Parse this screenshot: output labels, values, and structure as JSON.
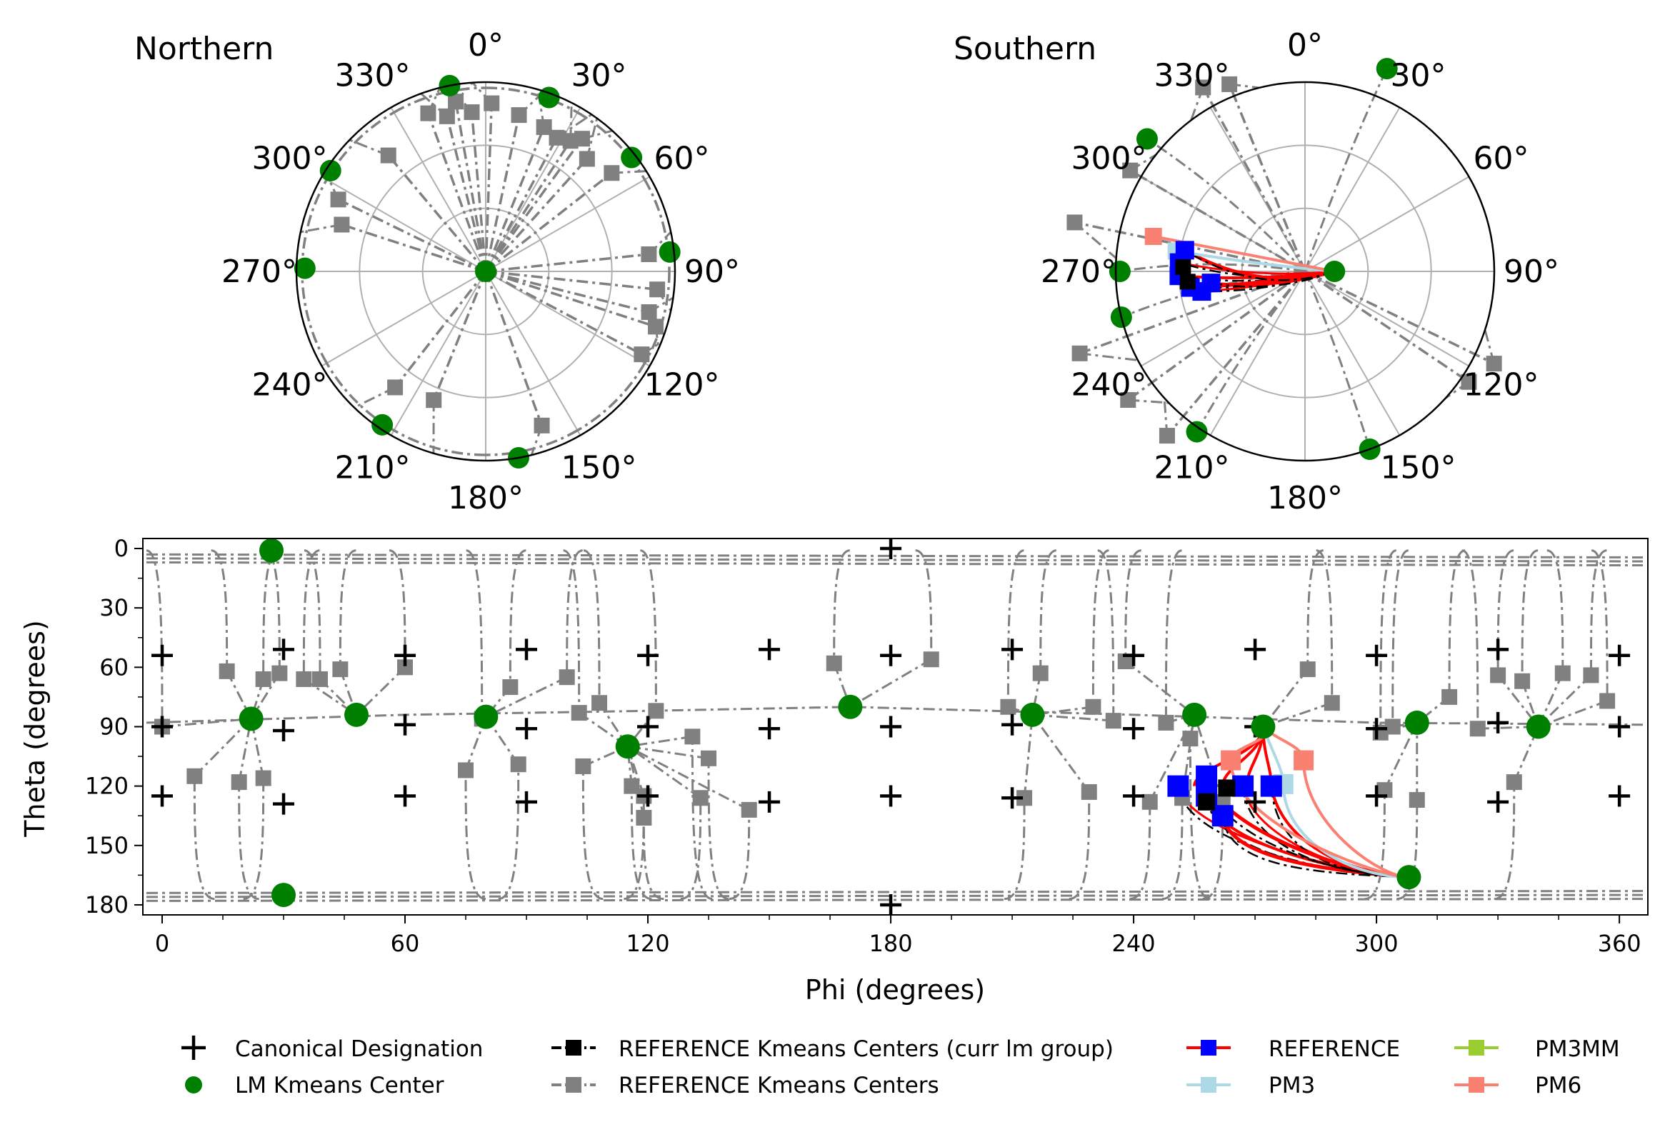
{
  "figure": {
    "background": "#ffffff"
  },
  "polar_northern": {
    "title": "Northern"
  },
  "polar_southern": {
    "title": "Southern"
  },
  "colors": {
    "gray": "#808080",
    "green": "#008000",
    "black": "#000000",
    "red": "#ff0000",
    "blue": "#0000ff",
    "lightblue": "#add8e6",
    "salmon": "#fa8072",
    "yellowgreen": "#9acd32",
    "grid": "#b0b0b0"
  },
  "chart_data": [
    {
      "type": "polar",
      "title": "Northern",
      "angle_ticks": [
        "0°",
        "30°",
        "60°",
        "90°",
        "120°",
        "150°",
        "180°",
        "210°",
        "240°",
        "270°",
        "300°",
        "330°"
      ],
      "radial_max_theta_deg": 90,
      "gray_center_points": [
        {
          "phi": 2,
          "theta": 80
        },
        {
          "phi": 12,
          "theta": 76
        },
        {
          "phi": 22,
          "theta": 74
        },
        {
          "phi": 28,
          "theta": 72
        },
        {
          "phi": 33,
          "theta": 74
        },
        {
          "phi": 36,
          "theta": 78
        },
        {
          "phi": 42,
          "theta": 72
        },
        {
          "phi": 52,
          "theta": 76
        },
        {
          "phi": 84,
          "theta": 78
        },
        {
          "phi": 96,
          "theta": 82
        },
        {
          "phi": 104,
          "theta": 80
        },
        {
          "phi": 108,
          "theta": 85
        },
        {
          "phi": 118,
          "theta": 84
        },
        {
          "phi": 160,
          "theta": 78
        },
        {
          "phi": 202,
          "theta": 66
        },
        {
          "phi": 218,
          "theta": 70
        },
        {
          "phi": 288,
          "theta": 72
        },
        {
          "phi": 296,
          "theta": 78
        },
        {
          "phi": 320,
          "theta": 72
        },
        {
          "phi": 340,
          "theta": 80
        },
        {
          "phi": 346,
          "theta": 76
        },
        {
          "phi": 350,
          "theta": 82
        },
        {
          "phi": 355,
          "theta": 76
        }
      ],
      "lm_centers": [
        {
          "phi": 0,
          "theta": 0
        },
        {
          "phi": 349,
          "theta": 90
        },
        {
          "phi": 20,
          "theta": 88
        },
        {
          "phi": 52,
          "theta": 88
        },
        {
          "phi": 84,
          "theta": 88
        },
        {
          "phi": 170,
          "theta": 90
        },
        {
          "phi": 214,
          "theta": 88
        },
        {
          "phi": 271,
          "theta": 86
        },
        {
          "phi": 303,
          "theta": 88
        }
      ]
    },
    {
      "type": "polar",
      "title": "Southern",
      "angle_ticks": [
        "0°",
        "30°",
        "60°",
        "90°",
        "120°",
        "150°",
        "180°",
        "210°",
        "240°",
        "270°",
        "300°",
        "330°"
      ],
      "radial_max_theta_deg": 90,
      "gray_center_points": [
        {
          "phi": 282,
          "theta": 68
        },
        {
          "phi": 300,
          "theta": 84
        },
        {
          "phi": 331,
          "theta": 80
        },
        {
          "phi": 338,
          "theta": 84
        },
        {
          "phi": 234,
          "theta": 76
        },
        {
          "phi": 220,
          "theta": 78
        },
        {
          "phi": 116,
          "theta": 80
        },
        {
          "phi": 124,
          "theta": 86
        },
        {
          "phi": 250,
          "theta": 66
        }
      ],
      "lm_centers": [
        {
          "phi": 22,
          "theta": 76
        },
        {
          "phi": 310,
          "theta": 82
        },
        {
          "phi": 270,
          "theta": 92
        },
        {
          "phi": 256,
          "theta": 90
        },
        {
          "phi": 214,
          "theta": 88
        },
        {
          "phi": 160,
          "theta": 90
        },
        {
          "phi": 90,
          "theta": 166
        }
      ],
      "reference_start": {
        "phi": 90,
        "theta": 166
      },
      "reference_points": [
        {
          "phi": 274,
          "theta": 120
        },
        {
          "phi": 268,
          "theta": 120
        },
        {
          "phi": 262,
          "theta": 125
        },
        {
          "phi": 259,
          "theta": 130
        },
        {
          "phi": 263,
          "theta": 135
        },
        {
          "phi": 280,
          "theta": 122
        }
      ],
      "pm3_points": [
        {
          "phi": 279,
          "theta": 118
        }
      ],
      "pm6_points": [
        {
          "phi": 283,
          "theta": 106
        }
      ]
    },
    {
      "type": "scatter",
      "xlabel": "Phi (degrees)",
      "ylabel": "Theta (degrees)",
      "xlim": [
        -3,
        363
      ],
      "ylim": [
        0,
        185
      ],
      "xticks": [
        0,
        60,
        120,
        180,
        240,
        300,
        360
      ],
      "yticks": [
        0,
        30,
        60,
        90,
        120,
        150,
        180
      ],
      "canonical_designations": [
        {
          "x": 180,
          "y": 0
        },
        {
          "x": 180,
          "y": 180
        },
        {
          "x": 0,
          "y": 54
        },
        {
          "x": 30,
          "y": 51
        },
        {
          "x": 60,
          "y": 54
        },
        {
          "x": 90,
          "y": 51
        },
        {
          "x": 120,
          "y": 54
        },
        {
          "x": 150,
          "y": 51
        },
        {
          "x": 180,
          "y": 54
        },
        {
          "x": 210,
          "y": 51
        },
        {
          "x": 240,
          "y": 54
        },
        {
          "x": 270,
          "y": 51
        },
        {
          "x": 300,
          "y": 54
        },
        {
          "x": 330,
          "y": 51
        },
        {
          "x": 360,
          "y": 54
        },
        {
          "x": 0,
          "y": 90
        },
        {
          "x": 30,
          "y": 92
        },
        {
          "x": 60,
          "y": 89
        },
        {
          "x": 90,
          "y": 91
        },
        {
          "x": 120,
          "y": 90
        },
        {
          "x": 150,
          "y": 91
        },
        {
          "x": 180,
          "y": 90
        },
        {
          "x": 210,
          "y": 89
        },
        {
          "x": 240,
          "y": 91
        },
        {
          "x": 270,
          "y": 90
        },
        {
          "x": 300,
          "y": 91
        },
        {
          "x": 330,
          "y": 88
        },
        {
          "x": 360,
          "y": 90
        },
        {
          "x": 0,
          "y": 125
        },
        {
          "x": 30,
          "y": 129
        },
        {
          "x": 60,
          "y": 125
        },
        {
          "x": 90,
          "y": 128
        },
        {
          "x": 120,
          "y": 125
        },
        {
          "x": 150,
          "y": 128
        },
        {
          "x": 180,
          "y": 125
        },
        {
          "x": 210,
          "y": 126
        },
        {
          "x": 240,
          "y": 125
        },
        {
          "x": 270,
          "y": 128
        },
        {
          "x": 300,
          "y": 125
        },
        {
          "x": 330,
          "y": 128
        },
        {
          "x": 360,
          "y": 125
        }
      ],
      "lm_kmeans_centers": [
        {
          "x": 27,
          "y": 1
        },
        {
          "x": 22,
          "y": 86
        },
        {
          "x": 48,
          "y": 84
        },
        {
          "x": 80,
          "y": 85
        },
        {
          "x": 115,
          "y": 100
        },
        {
          "x": 170,
          "y": 80
        },
        {
          "x": 215,
          "y": 84
        },
        {
          "x": 255,
          "y": 84
        },
        {
          "x": 272,
          "y": 90
        },
        {
          "x": 310,
          "y": 88
        },
        {
          "x": 340,
          "y": 90
        },
        {
          "x": 30,
          "y": 175
        },
        {
          "x": 308,
          "y": 166
        }
      ],
      "reference_kmeans_centers": [
        {
          "x": 0,
          "y": 90
        },
        {
          "x": 8,
          "y": 115
        },
        {
          "x": 16,
          "y": 62
        },
        {
          "x": 19,
          "y": 118
        },
        {
          "x": 25,
          "y": 116
        },
        {
          "x": 25,
          "y": 66
        },
        {
          "x": 29,
          "y": 63
        },
        {
          "x": 35,
          "y": 66
        },
        {
          "x": 39,
          "y": 66
        },
        {
          "x": 44,
          "y": 61
        },
        {
          "x": 60,
          "y": 60
        },
        {
          "x": 75,
          "y": 112
        },
        {
          "x": 79,
          "y": 86
        },
        {
          "x": 86,
          "y": 70
        },
        {
          "x": 88,
          "y": 109
        },
        {
          "x": 100,
          "y": 65
        },
        {
          "x": 103,
          "y": 83
        },
        {
          "x": 104,
          "y": 110
        },
        {
          "x": 108,
          "y": 78
        },
        {
          "x": 116,
          "y": 120
        },
        {
          "x": 119,
          "y": 125
        },
        {
          "x": 119,
          "y": 136
        },
        {
          "x": 122,
          "y": 82
        },
        {
          "x": 131,
          "y": 95
        },
        {
          "x": 133,
          "y": 126
        },
        {
          "x": 135,
          "y": 106
        },
        {
          "x": 145,
          "y": 132
        },
        {
          "x": 166,
          "y": 58
        },
        {
          "x": 190,
          "y": 56
        },
        {
          "x": 209,
          "y": 80
        },
        {
          "x": 213,
          "y": 126
        },
        {
          "x": 217,
          "y": 63
        },
        {
          "x": 229,
          "y": 123
        },
        {
          "x": 230,
          "y": 80
        },
        {
          "x": 235,
          "y": 87
        },
        {
          "x": 238,
          "y": 57
        },
        {
          "x": 244,
          "y": 128
        },
        {
          "x": 248,
          "y": 88
        },
        {
          "x": 252,
          "y": 126
        },
        {
          "x": 254,
          "y": 96
        },
        {
          "x": 262,
          "y": 128
        },
        {
          "x": 283,
          "y": 61
        },
        {
          "x": 289,
          "y": 78
        },
        {
          "x": 301,
          "y": 93
        },
        {
          "x": 302,
          "y": 122
        },
        {
          "x": 304,
          "y": 90
        },
        {
          "x": 310,
          "y": 127
        },
        {
          "x": 318,
          "y": 75
        },
        {
          "x": 325,
          "y": 91
        },
        {
          "x": 330,
          "y": 64
        },
        {
          "x": 334,
          "y": 118
        },
        {
          "x": 336,
          "y": 67
        },
        {
          "x": 346,
          "y": 63
        },
        {
          "x": 353,
          "y": 64
        },
        {
          "x": 357,
          "y": 77
        }
      ],
      "reference_kmeans_centers_curr_lm_group": [
        {
          "x": 258,
          "y": 128
        },
        {
          "x": 263,
          "y": 121
        }
      ],
      "reference_points": [
        {
          "x": 251,
          "y": 120
        },
        {
          "x": 258,
          "y": 125
        },
        {
          "x": 262,
          "y": 135
        },
        {
          "x": 267,
          "y": 120
        },
        {
          "x": 274,
          "y": 120
        },
        {
          "x": 258,
          "y": 115
        }
      ],
      "pm3_points": [
        {
          "x": 277,
          "y": 119
        }
      ],
      "pm6_points": [
        {
          "x": 282,
          "y": 107
        },
        {
          "x": 264,
          "y": 107
        }
      ]
    }
  ],
  "legend": {
    "canonical": "Canonical Designation",
    "lm_center": "LM Kmeans Center",
    "ref_curr": "REFERENCE Kmeans Centers (curr lm group)",
    "ref_centers": "REFERENCE Kmeans Centers",
    "reference": "REFERENCE",
    "pm3": "PM3",
    "pm3mm": "PM3MM",
    "pm6": "PM6"
  }
}
